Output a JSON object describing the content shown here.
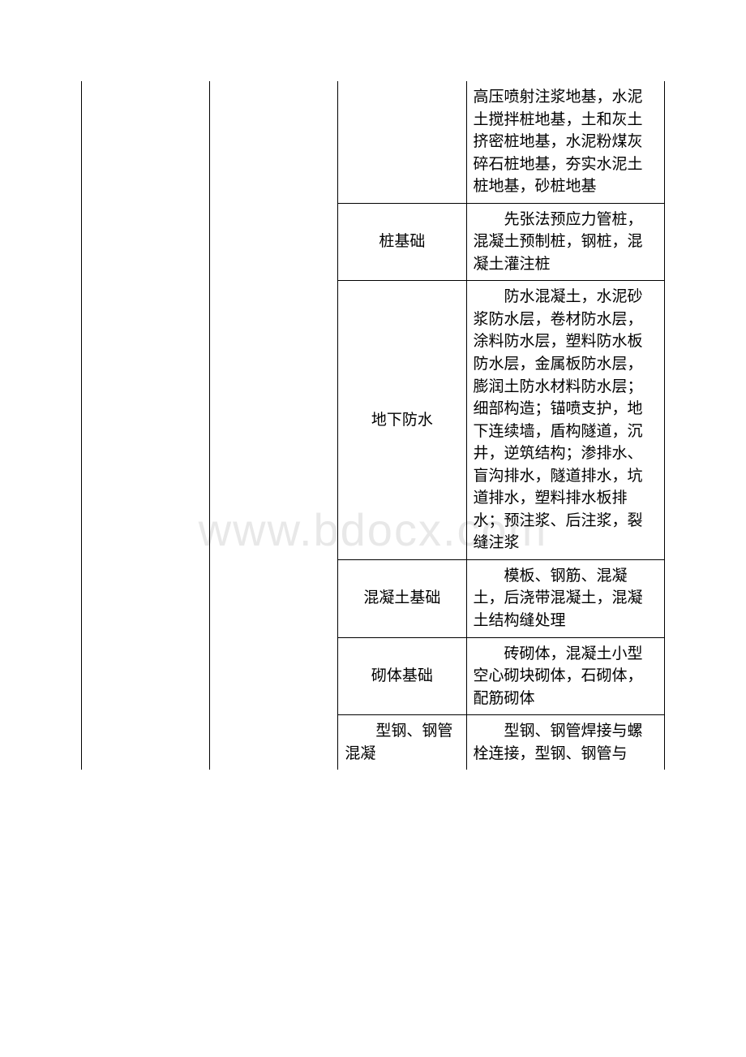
{
  "watermark": "www.bdocx.com",
  "table": {
    "columns": [
      "col1",
      "col2",
      "col3",
      "col4"
    ],
    "border_color": "#000000",
    "font_size_pt": 14,
    "rows": [
      {
        "c3": "",
        "c4": "高压喷射注浆地基，水泥土搅拌桩地基，土和灰土挤密桩地基，水泥粉煤灰碎石桩地基，夯实水泥土桩地基，砂桩地基"
      },
      {
        "c3": "桩基础",
        "c4": "　　先张法预应力管桩，混凝土预制桩，钢桩，混凝土灌注桩"
      },
      {
        "c3": "地下防水",
        "c4": "　　防水混凝土，水泥砂浆防水层，卷材防水层，涂料防水层，塑料防水板防水层，金属板防水层，膨润土防水材料防水层；细部构造；锚喷支护，地下连续墙，盾构隧道，沉井，逆筑结构；渗排水、盲沟排水，隧道排水，坑道排水，塑料排水板排水；预注浆、后注浆，裂缝注浆"
      },
      {
        "c3": "混凝土基础",
        "c4": "　　模板、钢筋、混凝土，后浇带混凝土，混凝土结构缝处理"
      },
      {
        "c3": "砌体基础",
        "c4": "　　砖砌体，混凝土小型空心砌块砌体，石砌体，配筋砌体"
      },
      {
        "c3": "　　型钢、钢管混凝",
        "c4": "　　型钢、钢管焊接与螺栓连接，型钢、钢管与"
      }
    ]
  }
}
